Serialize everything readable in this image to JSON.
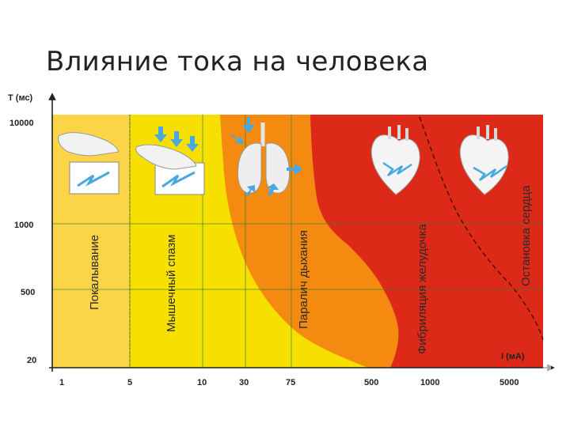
{
  "slide": {
    "title": "Влияние тока на человека"
  },
  "chart_data": {
    "type": "area",
    "xlabel": "I (мА)",
    "ylabel": "T (мс)",
    "x_ticks": [
      "1",
      "5",
      "10",
      "30",
      "75",
      "500",
      "1000",
      "5000"
    ],
    "y_ticks": [
      "10000",
      "1000",
      "500",
      "20"
    ],
    "zones": [
      {
        "name": "Покалывание",
        "x_from": "1",
        "x_to": "5",
        "color": "#fcd447"
      },
      {
        "name": "Мышечный спазм",
        "x_from": "5",
        "x_to": "30",
        "color": "#f7e000"
      },
      {
        "name": "Паралич дыхания",
        "color": "#f48a10"
      },
      {
        "name": "Фибриляция желудочка",
        "color": "#dd2a18"
      },
      {
        "name": "Остановка сердца",
        "color": "#dd2a18"
      }
    ],
    "grid": true
  }
}
